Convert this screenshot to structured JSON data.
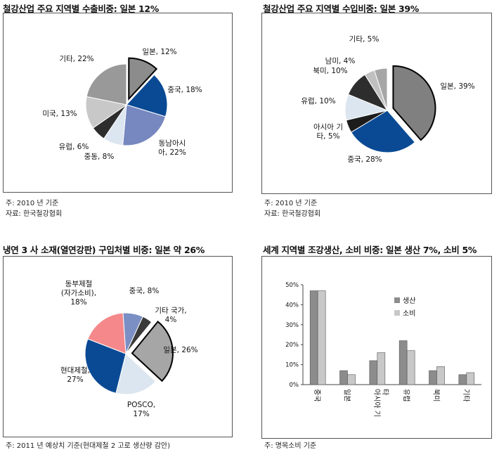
{
  "panels": [
    {
      "title": "철강산업 주요 지역별 수출비중: 일본 12%",
      "notes": [
        "주: 2010 년 기준",
        "자료: 한국철강협회"
      ]
    },
    {
      "title": "철강산업 주요 지역별 수입비중: 일본 39%",
      "notes": [
        "주: 2010 년 기준",
        "자료: 한국철강협회"
      ]
    },
    {
      "title": "냉연 3 사 소재(열연강판) 구입처별 비중: 일본 약 26%",
      "notes": [
        "주: 2011 년 예상치 기준(현대제철 2 고로 생산량 감안)"
      ]
    },
    {
      "title": "세계 지역별 조강생산, 소비 비중: 일본 생산 7%, 소비 5%",
      "notes": [
        "주: 명목소비 기준"
      ]
    }
  ],
  "chart_data": [
    {
      "type": "pie",
      "title": "철강산업 주요 지역별 수출비중: 일본 12%",
      "slices": [
        {
          "name": "일본",
          "value": 12,
          "color": "#8c8c8c",
          "label_lines": [
            "일본, 12%"
          ],
          "exploded": true
        },
        {
          "name": "중국",
          "value": 18,
          "color": "#0a4a94",
          "label_lines": [
            "중국, 18%"
          ]
        },
        {
          "name": "동남아시아",
          "value": 22,
          "color": "#7788c0",
          "label_lines": [
            "동남아시",
            "아, 22%"
          ]
        },
        {
          "name": "중동",
          "value": 8,
          "color": "#dce6f0",
          "label_lines": [
            "중동, 8%"
          ]
        },
        {
          "name": "유럽",
          "value": 6,
          "color": "#2d2d2d",
          "label_lines": [
            "유럽, 6%"
          ]
        },
        {
          "name": "미국",
          "value": 13,
          "color": "#c8c8c8",
          "label_lines": [
            "미국, 13%"
          ]
        },
        {
          "name": "기타",
          "value": 22,
          "color": "#999999",
          "label_lines": [
            "기타, 22%"
          ]
        }
      ]
    },
    {
      "type": "pie",
      "title": "철강산업 주요 지역별 수입비중: 일본 39%",
      "slices": [
        {
          "name": "일본",
          "value": 39,
          "color": "#808080",
          "label_lines": [
            "일본, 39%"
          ],
          "exploded": true
        },
        {
          "name": "중국",
          "value": 28,
          "color": "#0a4a94",
          "label_lines": [
            "중국, 28%"
          ]
        },
        {
          "name": "아시아 기타",
          "value": 5,
          "color": "#1c1c1c",
          "label_lines": [
            "아시아 기",
            "타, 5%"
          ]
        },
        {
          "name": "유럽",
          "value": 10,
          "color": "#dce6f0",
          "label_lines": [
            "유럽, 10%"
          ]
        },
        {
          "name": "북미",
          "value": 10,
          "color": "#2d2d2d",
          "label_lines": [
            "북미, 10%"
          ]
        },
        {
          "name": "남미",
          "value": 4,
          "color": "#c0c0c0",
          "label_lines": [
            "남미, 4%"
          ]
        },
        {
          "name": "기타",
          "value": 5,
          "color": "#a6a6a6",
          "label_lines": [
            "기타, 5%"
          ]
        }
      ]
    },
    {
      "type": "pie",
      "title": "냉연 3 사 소재(열연강판) 구입처별 비중: 일본 약 26%",
      "slices": [
        {
          "name": "중국",
          "value": 8,
          "color": "#7b8fc4",
          "label_lines": [
            "중국, 8%"
          ]
        },
        {
          "name": "기타 국가",
          "value": 4,
          "color": "#3a3a3a",
          "label_lines": [
            "기타 국가,",
            "4%"
          ]
        },
        {
          "name": "일본",
          "value": 26,
          "color": "#a6a6a6",
          "label_lines": [
            "일본, 26%"
          ],
          "exploded": true
        },
        {
          "name": "POSCO",
          "value": 17,
          "color": "#dce6f0",
          "label_lines": [
            "POSCO,",
            "17%"
          ]
        },
        {
          "name": "현대제철",
          "value": 27,
          "color": "#0a4a94",
          "label_lines": [
            "현대제철,",
            "27%"
          ]
        },
        {
          "name": "동부제철 (자가소비)",
          "value": 18,
          "color": "#f4888a",
          "label_lines": [
            "동부제철",
            "(자가소비),",
            "18%"
          ]
        }
      ]
    },
    {
      "type": "bar",
      "title": "세계 지역별 조강생산, 소비 비중: 일본 생산 7%, 소비 5%",
      "categories": [
        "중국",
        "일본",
        "아시아 기타",
        "유럽",
        "북미",
        "기타"
      ],
      "category_label_lines": [
        [
          "중국"
        ],
        [
          "일본"
        ],
        [
          "아시아 기",
          "타"
        ],
        [
          "유럽"
        ],
        [
          "북미"
        ],
        [
          "기타"
        ]
      ],
      "series": [
        {
          "name": "생산",
          "color": "#8c8c8c",
          "values": [
            47,
            7,
            12,
            22,
            7,
            5
          ]
        },
        {
          "name": "소비",
          "color": "#c8c8c8",
          "values": [
            47,
            5,
            16,
            17,
            9,
            6
          ]
        }
      ],
      "ylim": [
        0,
        50
      ],
      "yticks": [
        "0%",
        "10%",
        "20%",
        "30%",
        "40%",
        "50%"
      ],
      "legend_position": "top-center",
      "grid": false
    }
  ]
}
